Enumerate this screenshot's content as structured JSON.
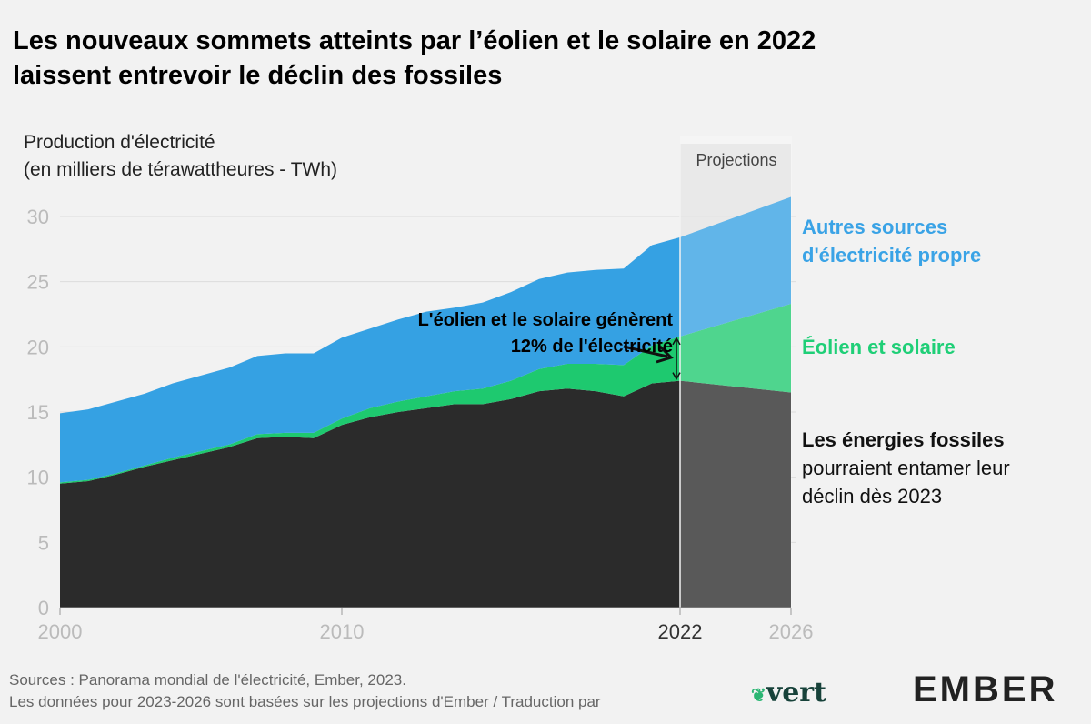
{
  "title_line1": "Les nouveaux sommets atteints par l’éolien et le solaire en 2022",
  "title_line2": "laissent entrevoir le déclin des fossiles",
  "ylabel_line1": "Production d'électricité",
  "ylabel_line2": "(en milliers de térawattheures - TWh)",
  "projection_label": "Projections",
  "annotation_line1": "L'éolien et le solaire génèrent",
  "annotation_line2": "12% de l'électricité",
  "legend": {
    "blue_line1": "Autres sources",
    "blue_line2": "d'électricité propre",
    "green": "Éolien et solaire",
    "fossil_bold": "Les énergies fossiles",
    "fossil_line2": "pourraient entamer leur",
    "fossil_line3": "déclin dès 2023"
  },
  "sources_line1": "Sources : Panorama mondial de l'électricité, Ember, 2023.",
  "sources_line2": "Les données pour 2023-2026 sont basées sur les projections d'Ember / Traduction par",
  "logo_vert": "vert",
  "logo_ember": "EMBER",
  "colors": {
    "fossil": "#2b2b2b",
    "solar": "#1ec96f",
    "clean": "#35a1e3",
    "background": "#f2f2f2"
  },
  "chart_data": {
    "type": "area",
    "stacked": true,
    "x": [
      2000,
      2001,
      2002,
      2003,
      2004,
      2005,
      2006,
      2007,
      2008,
      2009,
      2010,
      2011,
      2012,
      2013,
      2014,
      2015,
      2016,
      2017,
      2018,
      2019,
      2020,
      2021,
      2022,
      2026
    ],
    "series": [
      {
        "name": "Les énergies fossiles",
        "values": [
          9.5,
          9.7,
          10.2,
          10.8,
          11.3,
          11.8,
          12.3,
          13.0,
          13.1,
          13.0,
          14.0,
          14.6,
          15.0,
          15.3,
          15.6,
          15.6,
          16.0,
          16.6,
          16.8,
          16.6,
          16.2,
          17.2,
          17.4,
          16.5
        ]
      },
      {
        "name": "Éolien et solaire",
        "values": [
          0.1,
          0.1,
          0.1,
          0.1,
          0.2,
          0.2,
          0.2,
          0.3,
          0.3,
          0.4,
          0.5,
          0.7,
          0.8,
          0.9,
          1.0,
          1.2,
          1.4,
          1.7,
          1.9,
          2.1,
          2.4,
          2.9,
          3.4,
          6.8
        ]
      },
      {
        "name": "Autres sources d'électricité propre",
        "values": [
          5.3,
          5.4,
          5.5,
          5.5,
          5.7,
          5.8,
          5.9,
          6.0,
          6.1,
          6.1,
          6.2,
          6.1,
          6.3,
          6.5,
          6.4,
          6.6,
          6.8,
          6.9,
          7.0,
          7.2,
          7.4,
          7.7,
          7.6,
          8.2
        ]
      }
    ],
    "projection_start": 2022,
    "ylim": [
      0,
      30
    ],
    "yticks": [
      0,
      5,
      10,
      15,
      20,
      25,
      30
    ],
    "xticks": [
      2000,
      2010,
      2022,
      2026
    ],
    "grid": true
  }
}
